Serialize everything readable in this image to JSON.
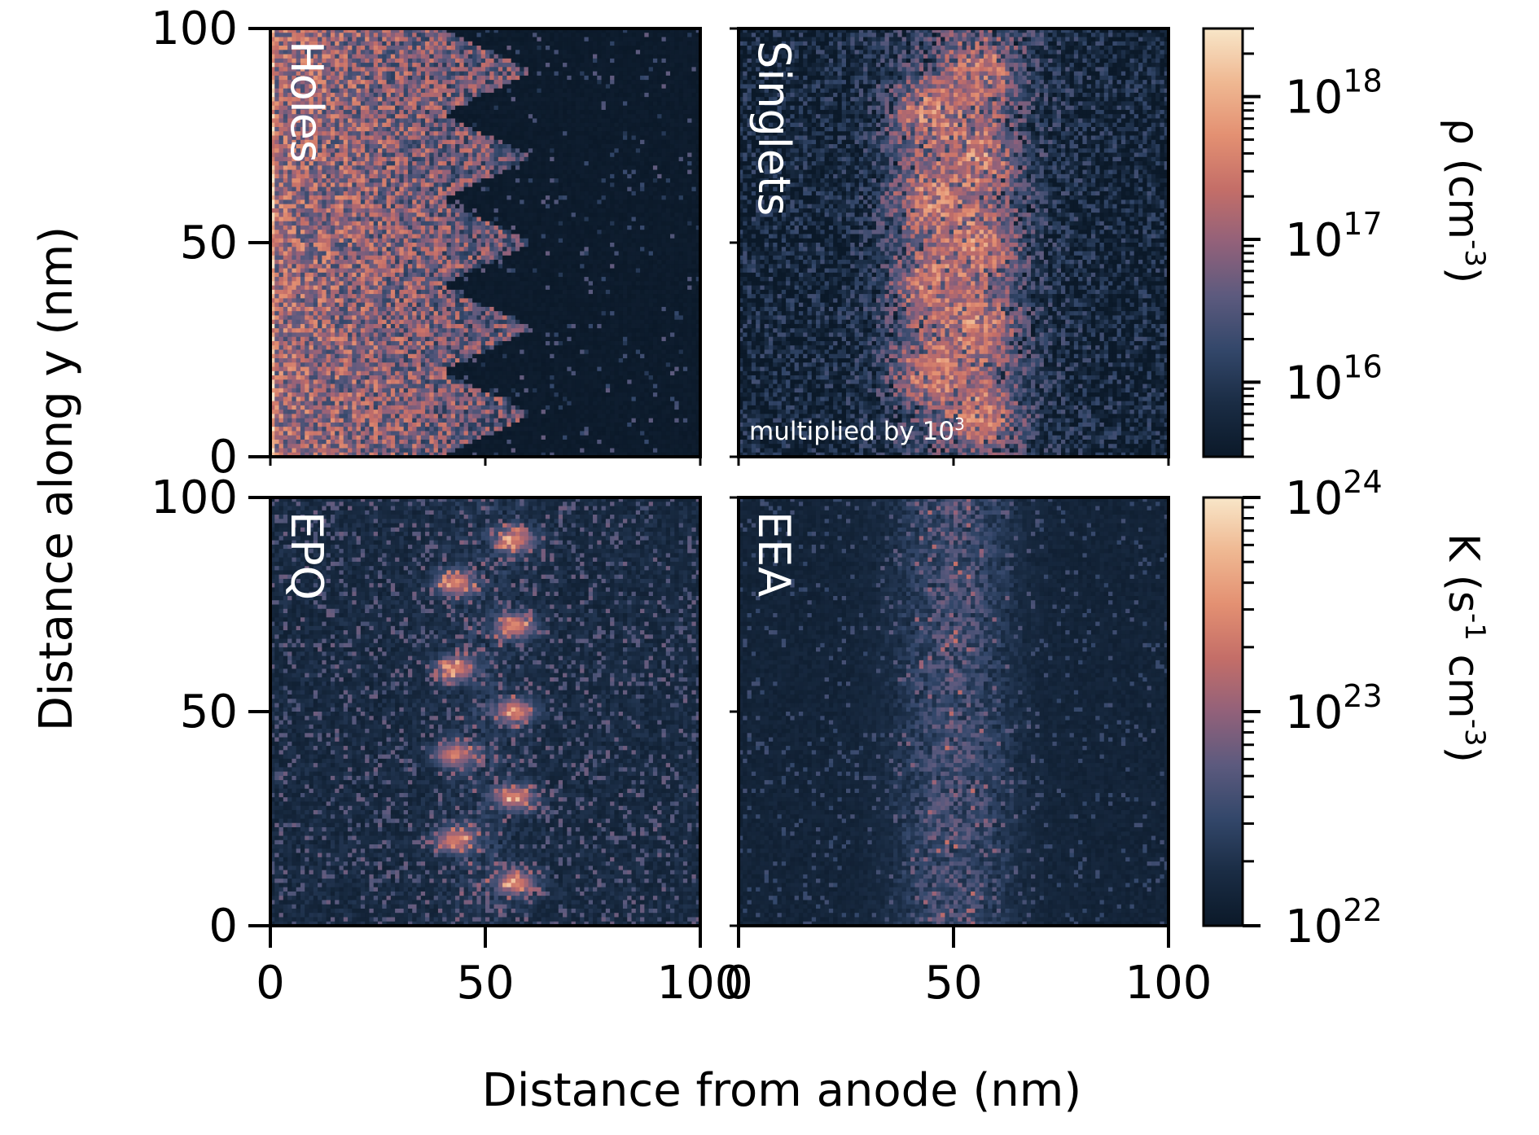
{
  "figure": {
    "ylabel": "Distance along y (nm)",
    "xlabel": "Distance from anode (nm)"
  },
  "colors": {
    "colormap": [
      "#0b1929",
      "#1a2c44",
      "#33476a",
      "#5c5a7e",
      "#92617a",
      "#c46e68",
      "#e39072",
      "#efb892",
      "#f8e6c8"
    ],
    "frame": "#000000",
    "panel_label": "#ffffff"
  },
  "chart_data": [
    {
      "type": "heatmap",
      "panel": "Holes",
      "xlim": [
        0,
        100
      ],
      "ylim": [
        0,
        100
      ],
      "xticks": [
        "0",
        "50",
        "100"
      ],
      "yticks": [
        "0",
        "50",
        "100"
      ],
      "grid": false,
      "colorbar": "rho",
      "pattern": "dense near anode (x<40 nm), sawtooth front extending to ~60 nm with tips at y = 10, 30, 50, 70, 90 nm and notches at ~40 nm at y = 0, 20, 40, 60, 80, 100 nm"
    },
    {
      "type": "heatmap",
      "panel": "Singlets",
      "note": "multiplied by 10",
      "note_exp": "3",
      "xlim": [
        0,
        100
      ],
      "ylim": [
        0,
        100
      ],
      "xticks": [
        "0",
        "50",
        "100"
      ],
      "yticks": [
        "0",
        "50",
        "100"
      ],
      "grid": false,
      "colorbar": "rho",
      "pattern": "broad band centered around x≈55 nm with bright blobs alternating at x≈40 and x≈57 nm"
    },
    {
      "type": "heatmap",
      "panel": "EPQ",
      "xlim": [
        0,
        100
      ],
      "ylim": [
        0,
        100
      ],
      "xticks": [
        "0",
        "50",
        "100"
      ],
      "yticks": [
        "0",
        "50",
        "100"
      ],
      "grid": false,
      "colorbar": "K",
      "pattern": "bright spots at x≈57 nm (y = 10, 30, 50, 70, 90) and x≈43 nm (y = 20, 40, 60, 80)"
    },
    {
      "type": "heatmap",
      "panel": "EEA",
      "xlim": [
        0,
        100
      ],
      "ylim": [
        0,
        100
      ],
      "xticks": [
        "0",
        "50",
        "100"
      ],
      "yticks": [
        "0",
        "50",
        "100"
      ],
      "grid": false,
      "colorbar": "K",
      "pattern": "diffuse band between x≈35 and x≈65 nm"
    }
  ],
  "colorbars": {
    "rho": {
      "label_main": "ρ (cm",
      "label_exp": "-3",
      "label_close": ")",
      "scale": "log",
      "range": [
        3000000000000000.0,
        3e+18
      ],
      "ticks": [
        {
          "base": "10",
          "exp": "16",
          "value": 1e+16
        },
        {
          "base": "10",
          "exp": "17",
          "value": 1e+17
        },
        {
          "base": "10",
          "exp": "18",
          "value": 1e+18
        }
      ]
    },
    "K": {
      "label_main": "K (s",
      "label_exp1": "-1",
      "label_mid": " cm",
      "label_exp2": "-3",
      "label_close": ")",
      "scale": "log",
      "range": [
        1e+22,
        1e+24
      ],
      "ticks": [
        {
          "base": "10",
          "exp": "22",
          "value": 1e+22
        },
        {
          "base": "10",
          "exp": "23",
          "value": 1e+23
        },
        {
          "base": "10",
          "exp": "24",
          "value": 1e+24
        }
      ]
    }
  }
}
